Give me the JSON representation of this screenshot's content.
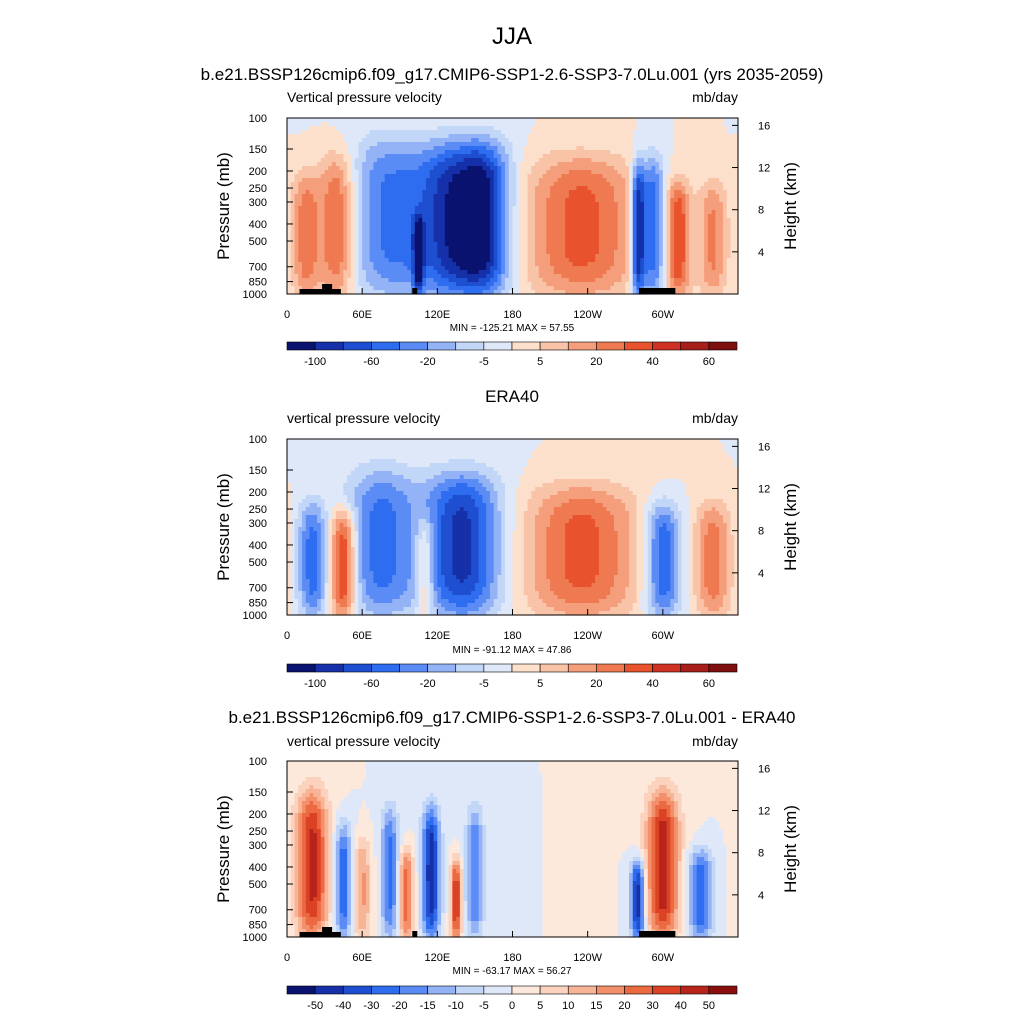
{
  "page": {
    "title": "JJA"
  },
  "palette": {
    "abs": [
      "#0a1270",
      "#1530a8",
      "#1e4fd0",
      "#2f6df0",
      "#5b8cf5",
      "#94b3f7",
      "#c2d6f8",
      "#dfe8f8",
      "#fce0cc",
      "#f9c3a8",
      "#f59e7c",
      "#ef7a52",
      "#e8532d",
      "#cf3222",
      "#a81e18",
      "#7d0f0f"
    ],
    "diff": [
      "#0a1270",
      "#1530a8",
      "#1e4fd0",
      "#2f6df0",
      "#5b8cf5",
      "#94b3f7",
      "#c2d6f8",
      "#dfe8f8",
      "#fde8dc",
      "#fbd2bd",
      "#f8b496",
      "#f3906b",
      "#ec6a42",
      "#db4225",
      "#b8241a",
      "#8a1010"
    ]
  },
  "chart_data": [
    {
      "type": "heatmap",
      "title": "",
      "subtitle": "b.e21.BSSP126cmip6.f09_g17.CMIP6-SSP1-2.6-SSP3-7.0Lu.001 (yrs 2035-2059)",
      "left_label": "Vertical pressure velocity",
      "units": "mb/day",
      "ylabel": "Pressure (mb)",
      "ylabel_right": "Height (km)",
      "yticks": [
        "100",
        "150",
        "200",
        "250",
        "300",
        "400",
        "500",
        "700",
        "850",
        "1000"
      ],
      "yticks_right": [
        "16",
        "12",
        "8",
        "4"
      ],
      "xticks": [
        "0",
        "60E",
        "120E",
        "180",
        "120W",
        "60W"
      ],
      "minmax": "MIN = -125.21  MAX =  57.55",
      "colorbar_labels": [
        "-100",
        "-60",
        "-20",
        "-5",
        "5",
        "20",
        "40",
        "60"
      ],
      "palette": "abs",
      "grid": false,
      "topography": true,
      "features": [
        {
          "lon": 15,
          "top": 220,
          "w": 8,
          "amp": 0.45
        },
        {
          "lon": 40,
          "top": 175,
          "w": 10,
          "amp": 0.55
        },
        {
          "lon": 80,
          "top": 140,
          "w": 22,
          "amp": -0.5
        },
        {
          "lon": 105,
          "top": 400,
          "w": 3,
          "amp": -0.6
        },
        {
          "lon": 135,
          "top": 150,
          "w": 22,
          "amp": -0.85
        },
        {
          "lon": 160,
          "top": 150,
          "w": 14,
          "amp": -0.55
        },
        {
          "lon": 235,
          "top": 180,
          "w": 32,
          "amp": 0.55
        },
        {
          "lon": 280,
          "top": 200,
          "w": 4,
          "amp": -0.9
        },
        {
          "lon": 292,
          "top": 180,
          "w": 7,
          "amp": -0.7
        },
        {
          "lon": 312,
          "top": 250,
          "w": 7,
          "amp": 0.6
        },
        {
          "lon": 340,
          "top": 250,
          "w": 8,
          "amp": 0.4
        }
      ]
    },
    {
      "type": "heatmap",
      "title": "",
      "subtitle": "ERA40",
      "left_label": "vertical pressure velocity",
      "units": "mb/day",
      "ylabel": "Pressure (mb)",
      "ylabel_right": "Height (km)",
      "yticks": [
        "100",
        "150",
        "200",
        "250",
        "300",
        "400",
        "500",
        "700",
        "850",
        "1000"
      ],
      "yticks_right": [
        "16",
        "12",
        "8",
        "4"
      ],
      "xticks": [
        "0",
        "60E",
        "120E",
        "180",
        "120W",
        "60W"
      ],
      "minmax": "MIN = -91.12  MAX =  47.86",
      "colorbar_labels": [
        "-100",
        "-60",
        "-20",
        "-5",
        "5",
        "20",
        "40",
        "60"
      ],
      "palette": "abs",
      "grid": false,
      "topography": false,
      "features": [
        {
          "lon": 20,
          "top": 250,
          "w": 8,
          "amp": -0.55
        },
        {
          "lon": 45,
          "top": 280,
          "w": 7,
          "amp": 0.75
        },
        {
          "lon": 75,
          "top": 160,
          "w": 20,
          "amp": -0.55
        },
        {
          "lon": 110,
          "top": 300,
          "w": 5,
          "amp": 0.4
        },
        {
          "lon": 140,
          "top": 170,
          "w": 22,
          "amp": -0.8
        },
        {
          "lon": 235,
          "top": 200,
          "w": 32,
          "amp": 0.55
        },
        {
          "lon": 300,
          "top": 250,
          "w": 10,
          "amp": -0.65
        },
        {
          "lon": 340,
          "top": 250,
          "w": 10,
          "amp": 0.45
        }
      ]
    },
    {
      "type": "heatmap",
      "title": "",
      "subtitle": "b.e21.BSSP126cmip6.f09_g17.CMIP6-SSP1-2.6-SSP3-7.0Lu.001 - ERA40",
      "left_label": "vertical pressure velocity",
      "units": "mb/day",
      "ylabel": "Pressure (mb)",
      "ylabel_right": "Height (km)",
      "yticks": [
        "100",
        "150",
        "200",
        "250",
        "300",
        "400",
        "500",
        "700",
        "850",
        "1000"
      ],
      "yticks_right": [
        "16",
        "12",
        "8",
        "4"
      ],
      "xticks": [
        "0",
        "60E",
        "120E",
        "180",
        "120W",
        "60W"
      ],
      "minmax": "MIN = -63.17  MAX =  56.27",
      "colorbar_labels": [
        "-50",
        "-40",
        "-30",
        "-20",
        "-15",
        "-10",
        "-5",
        "0",
        "5",
        "10",
        "15",
        "20",
        "30",
        "40",
        "50"
      ],
      "palette": "diff",
      "grid": false,
      "topography": true,
      "features": [
        {
          "lon": 20,
          "top": 160,
          "w": 9,
          "amp": 0.8
        },
        {
          "lon": 45,
          "top": 250,
          "w": 5,
          "amp": -0.6
        },
        {
          "lon": 60,
          "top": 300,
          "w": 5,
          "amp": 0.4
        },
        {
          "lon": 82,
          "top": 200,
          "w": 5,
          "amp": -0.55
        },
        {
          "lon": 95,
          "top": 350,
          "w": 4,
          "amp": 0.6
        },
        {
          "lon": 115,
          "top": 200,
          "w": 5,
          "amp": -0.85
        },
        {
          "lon": 135,
          "top": 400,
          "w": 3,
          "amp": 0.75
        },
        {
          "lon": 150,
          "top": 200,
          "w": 5,
          "amp": -0.5
        },
        {
          "lon": 280,
          "top": 400,
          "w": 4,
          "amp": -0.85
        },
        {
          "lon": 300,
          "top": 160,
          "w": 9,
          "amp": 0.85
        },
        {
          "lon": 330,
          "top": 350,
          "w": 7,
          "amp": -0.6
        }
      ]
    }
  ]
}
